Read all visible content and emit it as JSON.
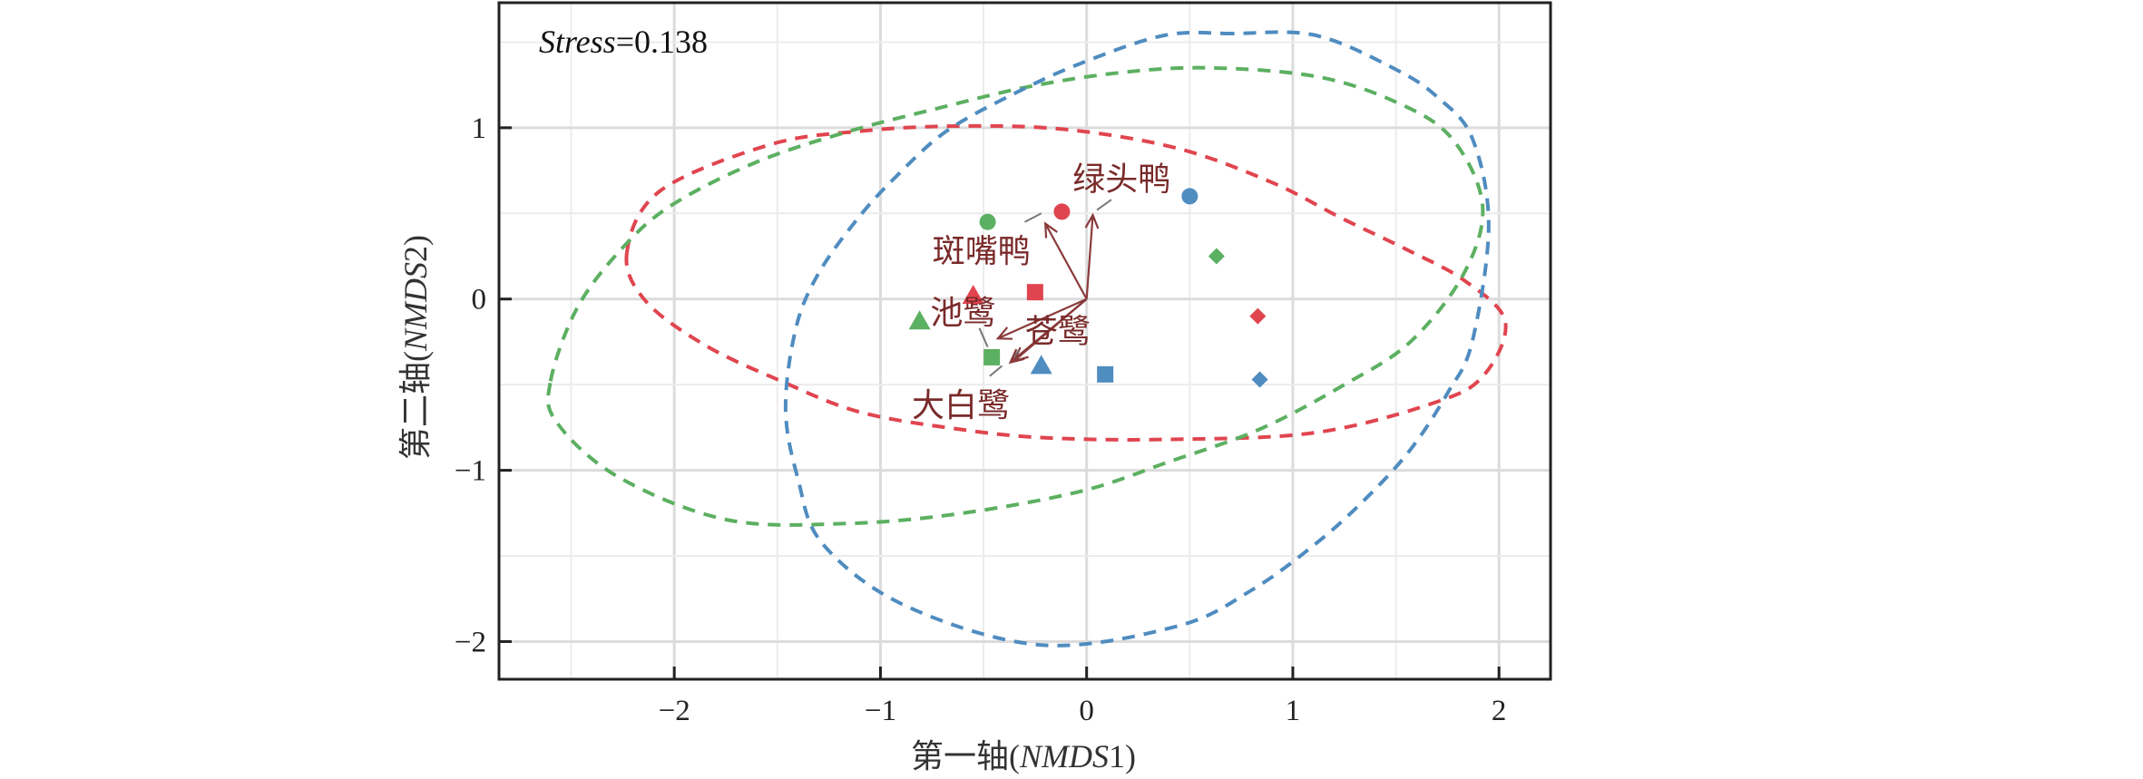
{
  "chart_data": {
    "type": "scatter",
    "title": "",
    "annotation": {
      "italic": "Stress",
      "rest": "=0.138"
    },
    "xlabel": {
      "prefix": "第一轴(",
      "italic": "NMDS",
      "suffix": "1)"
    },
    "ylabel": {
      "prefix": "第二轴(",
      "italic": "NMDS",
      "suffix": "2)"
    },
    "xlim": [
      -2.85,
      2.25
    ],
    "ylim": [
      -2.22,
      1.73
    ],
    "xticks": [
      -2,
      -1,
      0,
      1,
      2
    ],
    "yticks": [
      -2,
      -1,
      0,
      1
    ],
    "xtick_labels": [
      "−2",
      "−1",
      "0",
      "1",
      "2"
    ],
    "ytick_labels": [
      "−2",
      "−1",
      "0",
      "1"
    ],
    "grid": true,
    "colors": {
      "red": "#e0454f",
      "green": "#5cb061",
      "blue": "#4f8cc0",
      "arrow": "#8a3a3a",
      "label": "#7a2a2a"
    },
    "points": [
      {
        "group": "green",
        "shape": "circle",
        "x": -0.48,
        "y": 0.45
      },
      {
        "group": "red",
        "shape": "circle",
        "x": -0.12,
        "y": 0.51
      },
      {
        "group": "blue",
        "shape": "circle",
        "x": 0.5,
        "y": 0.6
      },
      {
        "group": "green",
        "shape": "diamond",
        "x": 0.63,
        "y": 0.25
      },
      {
        "group": "red",
        "shape": "diamond",
        "x": 0.83,
        "y": -0.1
      },
      {
        "group": "blue",
        "shape": "diamond",
        "x": 0.84,
        "y": -0.47
      },
      {
        "group": "red",
        "shape": "triangle",
        "x": -0.55,
        "y": 0.02
      },
      {
        "group": "green",
        "shape": "triangle",
        "x": -0.81,
        "y": -0.13
      },
      {
        "group": "blue",
        "shape": "triangle",
        "x": -0.22,
        "y": -0.39
      },
      {
        "group": "red",
        "shape": "square",
        "x": -0.25,
        "y": 0.04
      },
      {
        "group": "green",
        "shape": "square",
        "x": -0.46,
        "y": -0.34
      },
      {
        "group": "blue",
        "shape": "square",
        "x": 0.09,
        "y": -0.44
      }
    ],
    "vectors": [
      {
        "name": "斑嘴鸭",
        "x": -0.2,
        "y": 0.44,
        "label_x": -0.51,
        "label_y": 0.28,
        "leader": [
          [
            -0.3,
            0.45
          ],
          [
            -0.22,
            0.5
          ]
        ]
      },
      {
        "name": "绿头鸭",
        "x": 0.03,
        "y": 0.49,
        "label_x": 0.17,
        "label_y": 0.7,
        "leader": [
          [
            0.05,
            0.52
          ],
          [
            0.12,
            0.58
          ]
        ]
      },
      {
        "name": "池鹭",
        "x": -0.43,
        "y": -0.23,
        "label_x": -0.6,
        "label_y": -0.08,
        "leader": [
          [
            -0.52,
            -0.17
          ],
          [
            -0.48,
            -0.28
          ]
        ]
      },
      {
        "name": "苍鹭",
        "x": -0.35,
        "y": -0.36,
        "label_x": -0.14,
        "label_y": -0.19,
        "leader": [
          [
            -0.36,
            -0.35
          ],
          [
            -0.33,
            -0.3
          ]
        ]
      },
      {
        "name": "大白鹭",
        "x": -0.37,
        "y": -0.37,
        "label_x": -0.61,
        "label_y": -0.62,
        "leader": [
          [
            -0.47,
            -0.45
          ],
          [
            -0.41,
            -0.39
          ]
        ]
      }
    ],
    "ellipses": [
      {
        "group": "red",
        "outline": [
          [
            -2.23,
            0.27
          ],
          [
            -2.07,
            0.63
          ],
          [
            -1.54,
            0.9
          ],
          [
            -1.1,
            0.98
          ],
          [
            -0.62,
            1.01
          ],
          [
            -0.1,
            0.99
          ],
          [
            0.44,
            0.88
          ],
          [
            0.9,
            0.68
          ],
          [
            1.24,
            0.47
          ],
          [
            1.55,
            0.29
          ],
          [
            1.83,
            0.11
          ],
          [
            2.03,
            -0.13
          ],
          [
            1.93,
            -0.44
          ],
          [
            1.7,
            -0.6
          ],
          [
            1.11,
            -0.78
          ],
          [
            0.38,
            -0.82
          ],
          [
            -0.2,
            -0.81
          ],
          [
            -0.62,
            -0.76
          ],
          [
            -1.1,
            -0.66
          ],
          [
            -1.48,
            -0.48
          ],
          [
            -1.85,
            -0.27
          ],
          [
            -2.14,
            -0.01
          ]
        ]
      },
      {
        "group": "green",
        "outline": [
          [
            -2.6,
            -0.48
          ],
          [
            -2.47,
            -0.05
          ],
          [
            -2.25,
            0.3
          ],
          [
            -2.01,
            0.55
          ],
          [
            -1.6,
            0.8
          ],
          [
            -1.15,
            0.98
          ],
          [
            -0.7,
            1.12
          ],
          [
            -0.28,
            1.24
          ],
          [
            0.15,
            1.32
          ],
          [
            0.58,
            1.35
          ],
          [
            1.11,
            1.3
          ],
          [
            1.5,
            1.15
          ],
          [
            1.77,
            0.94
          ],
          [
            1.92,
            0.55
          ],
          [
            1.83,
            0.15
          ],
          [
            1.57,
            -0.25
          ],
          [
            1.25,
            -0.5
          ],
          [
            0.84,
            -0.76
          ],
          [
            0.4,
            -0.95
          ],
          [
            -0.02,
            -1.12
          ],
          [
            -0.6,
            -1.25
          ],
          [
            -1.15,
            -1.31
          ],
          [
            -1.74,
            -1.29
          ],
          [
            -2.27,
            -1.04
          ],
          [
            -2.57,
            -0.72
          ]
        ]
      },
      {
        "group": "blue",
        "outline": [
          [
            0.71,
            1.55
          ],
          [
            0.38,
            1.54
          ],
          [
            -0.02,
            1.38
          ],
          [
            -0.35,
            1.2
          ],
          [
            -0.68,
            0.98
          ],
          [
            -0.92,
            0.72
          ],
          [
            -1.11,
            0.47
          ],
          [
            -1.3,
            0.15
          ],
          [
            -1.41,
            -0.17
          ],
          [
            -1.46,
            -0.64
          ],
          [
            -1.4,
            -1.05
          ],
          [
            -1.28,
            -1.43
          ],
          [
            -0.88,
            -1.79
          ],
          [
            -0.22,
            -2.02
          ],
          [
            0.44,
            -1.91
          ],
          [
            0.8,
            -1.7
          ],
          [
            1.11,
            -1.43
          ],
          [
            1.35,
            -1.17
          ],
          [
            1.57,
            -0.88
          ],
          [
            1.75,
            -0.55
          ],
          [
            1.87,
            -0.25
          ],
          [
            1.95,
            0.43
          ],
          [
            1.87,
            0.94
          ],
          [
            1.7,
            1.18
          ],
          [
            1.5,
            1.34
          ],
          [
            1.11,
            1.54
          ]
        ]
      }
    ]
  }
}
